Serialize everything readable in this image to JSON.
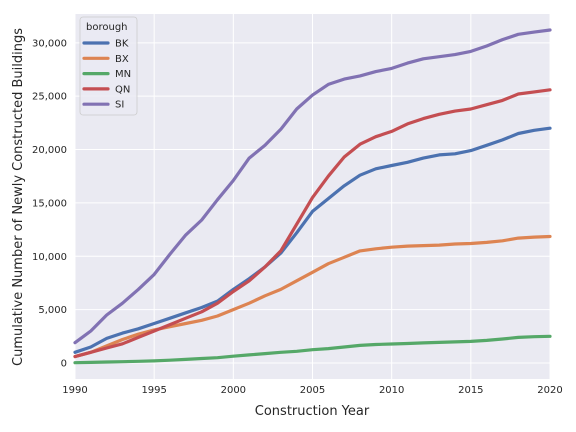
{
  "chart_data": {
    "type": "line",
    "xlabel": "Construction Year",
    "ylabel": "Cumulative Number of Newly Constructed Buildings",
    "xlim": [
      1990,
      2020
    ],
    "ylim": [
      -1500,
      32700
    ],
    "xticks": [
      1990,
      1995,
      2000,
      2005,
      2010,
      2015,
      2020
    ],
    "yticks": [
      0,
      5000,
      10000,
      15000,
      20000,
      25000,
      30000
    ],
    "xtick_labels": [
      "1990",
      "1995",
      "2000",
      "2005",
      "2010",
      "2015",
      "2020"
    ],
    "ytick_labels": [
      "0",
      "5,000",
      "10,000",
      "15,000",
      "20,000",
      "25,000",
      "30,000"
    ],
    "grid": true,
    "legend": {
      "title": "borough",
      "placement": "upper-left"
    },
    "x": [
      1990,
      1991,
      1992,
      1993,
      1994,
      1995,
      1996,
      1997,
      1998,
      1999,
      2000,
      2001,
      2002,
      2003,
      2004,
      2005,
      2006,
      2007,
      2008,
      2009,
      2010,
      2011,
      2012,
      2013,
      2014,
      2015,
      2016,
      2017,
      2018,
      2019,
      2020
    ],
    "series": [
      {
        "name": "BK",
        "color": "#4c72b0",
        "values": [
          1000,
          1500,
          2300,
          2800,
          3200,
          3700,
          4200,
          4700,
          5200,
          5800,
          6900,
          7900,
          9000,
          10300,
          12200,
          14200,
          15400,
          16600,
          17600,
          18200,
          18500,
          18800,
          19200,
          19500,
          19600,
          19900,
          20400,
          20900,
          21500,
          21800,
          22000
        ]
      },
      {
        "name": "BX",
        "color": "#dd8452",
        "values": [
          600,
          1000,
          1600,
          2200,
          2700,
          3100,
          3400,
          3700,
          4000,
          4400,
          5000,
          5600,
          6300,
          6900,
          7700,
          8500,
          9300,
          9900,
          10500,
          10700,
          10850,
          10950,
          11000,
          11050,
          11150,
          11200,
          11300,
          11450,
          11700,
          11800,
          11850
        ]
      },
      {
        "name": "MN",
        "color": "#55a868",
        "values": [
          30,
          60,
          90,
          120,
          160,
          200,
          260,
          340,
          420,
          500,
          640,
          760,
          880,
          1000,
          1100,
          1250,
          1350,
          1500,
          1650,
          1730,
          1780,
          1830,
          1880,
          1930,
          1980,
          2020,
          2120,
          2250,
          2400,
          2460,
          2500
        ]
      },
      {
        "name": "QN",
        "color": "#c44e52",
        "values": [
          600,
          1000,
          1400,
          1800,
          2400,
          3000,
          3600,
          4200,
          4800,
          5600,
          6700,
          7700,
          9000,
          10500,
          13000,
          15500,
          17500,
          19300,
          20500,
          21200,
          21700,
          22400,
          22900,
          23300,
          23600,
          23800,
          24200,
          24600,
          25200,
          25400,
          25600
        ]
      },
      {
        "name": "SI",
        "color": "#8172b3",
        "values": [
          1900,
          3000,
          4500,
          5600,
          6900,
          8300,
          10200,
          12000,
          13400,
          15300,
          17100,
          19200,
          20400,
          21900,
          23800,
          25100,
          26100,
          26600,
          26900,
          27300,
          27600,
          28100,
          28500,
          28700,
          28900,
          29200,
          29700,
          30300,
          30800,
          31000,
          31200
        ]
      }
    ]
  }
}
